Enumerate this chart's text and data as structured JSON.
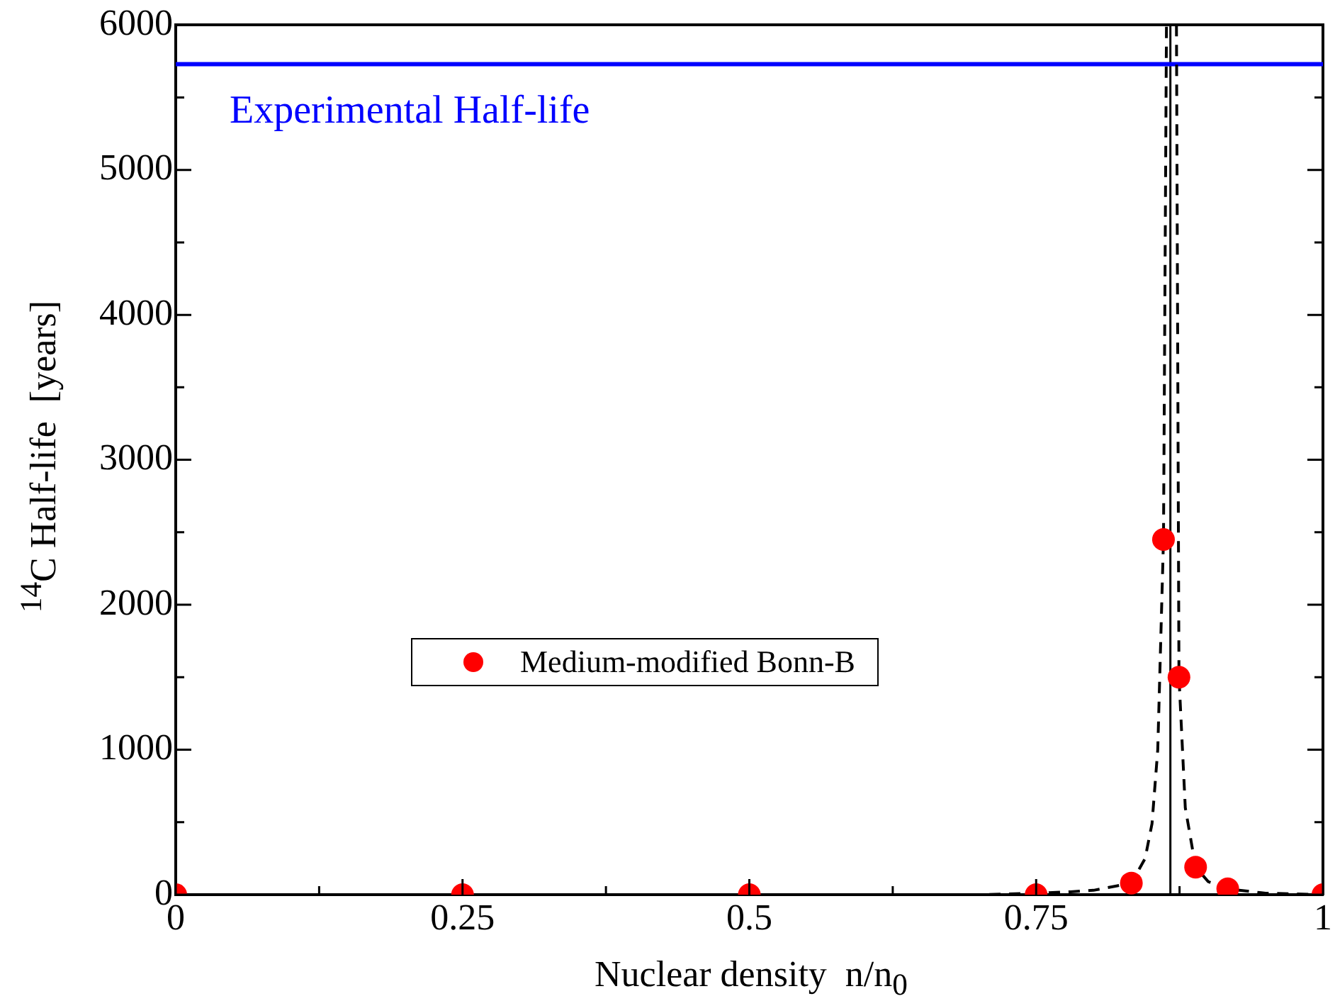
{
  "chart_data": {
    "type": "scatter",
    "xlabel": "Nuclear density  n/n$_{0}$",
    "ylabel": "$^{14}$C Half-life  [years]",
    "xlim": [
      0,
      1
    ],
    "xticks": [
      0,
      {
        "value": 0.125,
        "label": null
      },
      0.25,
      {
        "value": 0.375,
        "label": null
      },
      0.5,
      {
        "value": 0.625,
        "label": null
      },
      0.75,
      {
        "value": 0.875,
        "label": null
      },
      1
    ],
    "ylim": [
      0,
      6000
    ],
    "yticks": [
      0,
      {
        "value": 500,
        "label": null
      },
      1000,
      {
        "value": 1500,
        "label": null
      },
      2000,
      {
        "value": 2500,
        "label": null
      },
      3000,
      {
        "value": 3500,
        "label": null
      },
      4000,
      {
        "value": 4500,
        "label": null
      },
      5000,
      {
        "value": 5500,
        "label": null
      },
      6000
    ],
    "grid": false,
    "legend": "center",
    "marker": "circle",
    "series": [
      {
        "name": "Medium-modified Bonn-B",
        "color": "#ff0000",
        "x": [
          0,
          0.25,
          0.5,
          0.75,
          0.833,
          0.861,
          0.8745,
          0.889,
          0.917,
          1
        ],
        "values": [
          0,
          0,
          0,
          0,
          80,
          2450,
          1500,
          190,
          40,
          0
        ]
      },
      {
        "type": "line",
        "color": "#000000",
        "line_style": "dashed",
        "marker": "none",
        "x": [
          0,
          0.25,
          0.5,
          0.7,
          0.75,
          0.78,
          0.8,
          0.82,
          0.833,
          0.845,
          0.851,
          0.856,
          0.861,
          0.8636
        ],
        "values": [
          0,
          0,
          0,
          0,
          10,
          20,
          30,
          60,
          80,
          250,
          490,
          1000,
          2450,
          6000
        ]
      },
      {
        "type": "line",
        "color": "#000000",
        "line_style": "dashed",
        "marker": "none",
        "x": [
          0.8723,
          0.8745,
          0.88,
          0.889,
          0.9,
          0.917,
          0.95,
          1
        ],
        "values": [
          6000,
          1500,
          600,
          190,
          90,
          40,
          10,
          0
        ]
      }
    ],
    "ref_lines": [
      {
        "axis": "x",
        "value": 0.867,
        "color": "#000000",
        "line_style": "solid"
      },
      {
        "axis": "y",
        "value": 5730,
        "label": "Experimental Half-life",
        "color": "#0000ff",
        "line_style": "solid"
      }
    ]
  }
}
